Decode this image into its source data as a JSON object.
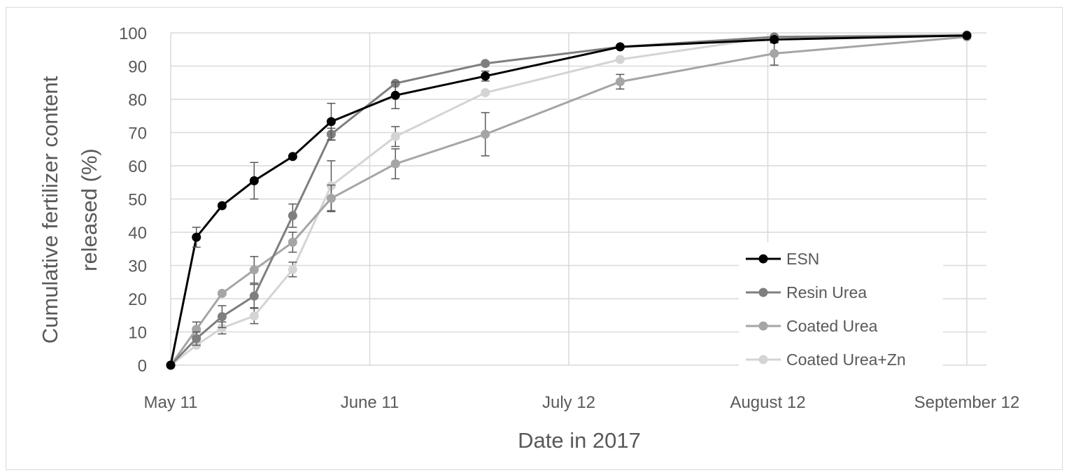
{
  "chart_data": {
    "type": "line",
    "xlabel": "Date in 2017",
    "ylabel_lines": [
      "Cumulative fertilizer content",
      "released (%)"
    ],
    "x_axis": {
      "min": "2017-05-11",
      "max": "2017-09-12",
      "ticks": [
        {
          "date": "2017-05-11",
          "label": "May 11"
        },
        {
          "date": "2017-06-11",
          "label": "June 11"
        },
        {
          "date": "2017-07-12",
          "label": "July 12"
        },
        {
          "date": "2017-08-12",
          "label": "August 12"
        },
        {
          "date": "2017-09-12",
          "label": "September 12"
        }
      ]
    },
    "y_axis": {
      "min": 0,
      "max": 100,
      "ticks": [
        0,
        10,
        20,
        30,
        40,
        50,
        60,
        70,
        80,
        90,
        100
      ]
    },
    "grid": true,
    "legend_position": "bottom-right",
    "series": [
      {
        "name": "ESN",
        "color": "#000000",
        "points": [
          {
            "x": "2017-05-11",
            "y": 0,
            "err": 0
          },
          {
            "x": "2017-05-15",
            "y": 38.5,
            "err": 3
          },
          {
            "x": "2017-05-19",
            "y": 48,
            "err": 0
          },
          {
            "x": "2017-05-24",
            "y": 55.5,
            "err": 5.5
          },
          {
            "x": "2017-05-30",
            "y": 62.8,
            "err": 0
          },
          {
            "x": "2017-06-05",
            "y": 73.3,
            "err": 5.5
          },
          {
            "x": "2017-06-15",
            "y": 81.2,
            "err": 4
          },
          {
            "x": "2017-06-29",
            "y": 87,
            "err": 1.5
          },
          {
            "x": "2017-07-20",
            "y": 95.8,
            "err": 0
          },
          {
            "x": "2017-08-13",
            "y": 98,
            "err": 1
          },
          {
            "x": "2017-09-12",
            "y": 99.2,
            "err": 0
          }
        ]
      },
      {
        "name": "Resin Urea",
        "color": "#7f7f7f",
        "points": [
          {
            "x": "2017-05-11",
            "y": 0,
            "err": 0
          },
          {
            "x": "2017-05-15",
            "y": 8,
            "err": 2
          },
          {
            "x": "2017-05-19",
            "y": 14.6,
            "err": 3.3
          },
          {
            "x": "2017-05-24",
            "y": 20.8,
            "err": 3.5
          },
          {
            "x": "2017-05-30",
            "y": 45,
            "err": 3.5
          },
          {
            "x": "2017-06-05",
            "y": 69.5,
            "err": 1.8
          },
          {
            "x": "2017-06-15",
            "y": 84.8,
            "err": 0
          },
          {
            "x": "2017-06-29",
            "y": 90.8,
            "err": 0
          },
          {
            "x": "2017-07-20",
            "y": 95.8,
            "err": 0
          },
          {
            "x": "2017-08-13",
            "y": 98.8,
            "err": 0
          },
          {
            "x": "2017-09-12",
            "y": 99.2,
            "err": 0
          }
        ]
      },
      {
        "name": "Coated Urea",
        "color": "#a5a5a5",
        "points": [
          {
            "x": "2017-05-11",
            "y": 0,
            "err": 0
          },
          {
            "x": "2017-05-15",
            "y": 10.8,
            "err": 2.2
          },
          {
            "x": "2017-05-19",
            "y": 21.6,
            "err": 0
          },
          {
            "x": "2017-05-24",
            "y": 28.7,
            "err": 4
          },
          {
            "x": "2017-05-30",
            "y": 37,
            "err": 3
          },
          {
            "x": "2017-06-05",
            "y": 50.2,
            "err": 4
          },
          {
            "x": "2017-06-15",
            "y": 60.6,
            "err": 4.5
          },
          {
            "x": "2017-06-29",
            "y": 69.5,
            "err": 6.5
          },
          {
            "x": "2017-07-20",
            "y": 85.3,
            "err": 2.2
          },
          {
            "x": "2017-08-13",
            "y": 93.8,
            "err": 3.5
          },
          {
            "x": "2017-09-12",
            "y": 98.8,
            "err": 0
          }
        ]
      },
      {
        "name": "Coated Urea+Zn",
        "color": "#d4d4d4",
        "points": [
          {
            "x": "2017-05-11",
            "y": 0,
            "err": 0
          },
          {
            "x": "2017-05-15",
            "y": 6,
            "err": 0
          },
          {
            "x": "2017-05-19",
            "y": 11.2,
            "err": 1.8
          },
          {
            "x": "2017-05-24",
            "y": 14.8,
            "err": 2.3
          },
          {
            "x": "2017-05-30",
            "y": 28.8,
            "err": 2.2
          },
          {
            "x": "2017-06-05",
            "y": 54,
            "err": 7.5
          },
          {
            "x": "2017-06-15",
            "y": 68.8,
            "err": 3
          },
          {
            "x": "2017-06-29",
            "y": 82,
            "err": 0
          },
          {
            "x": "2017-07-20",
            "y": 92,
            "err": 0
          },
          {
            "x": "2017-08-13",
            "y": 98.8,
            "err": 0
          },
          {
            "x": "2017-09-12",
            "y": 99.5,
            "err": 0
          }
        ]
      }
    ]
  }
}
